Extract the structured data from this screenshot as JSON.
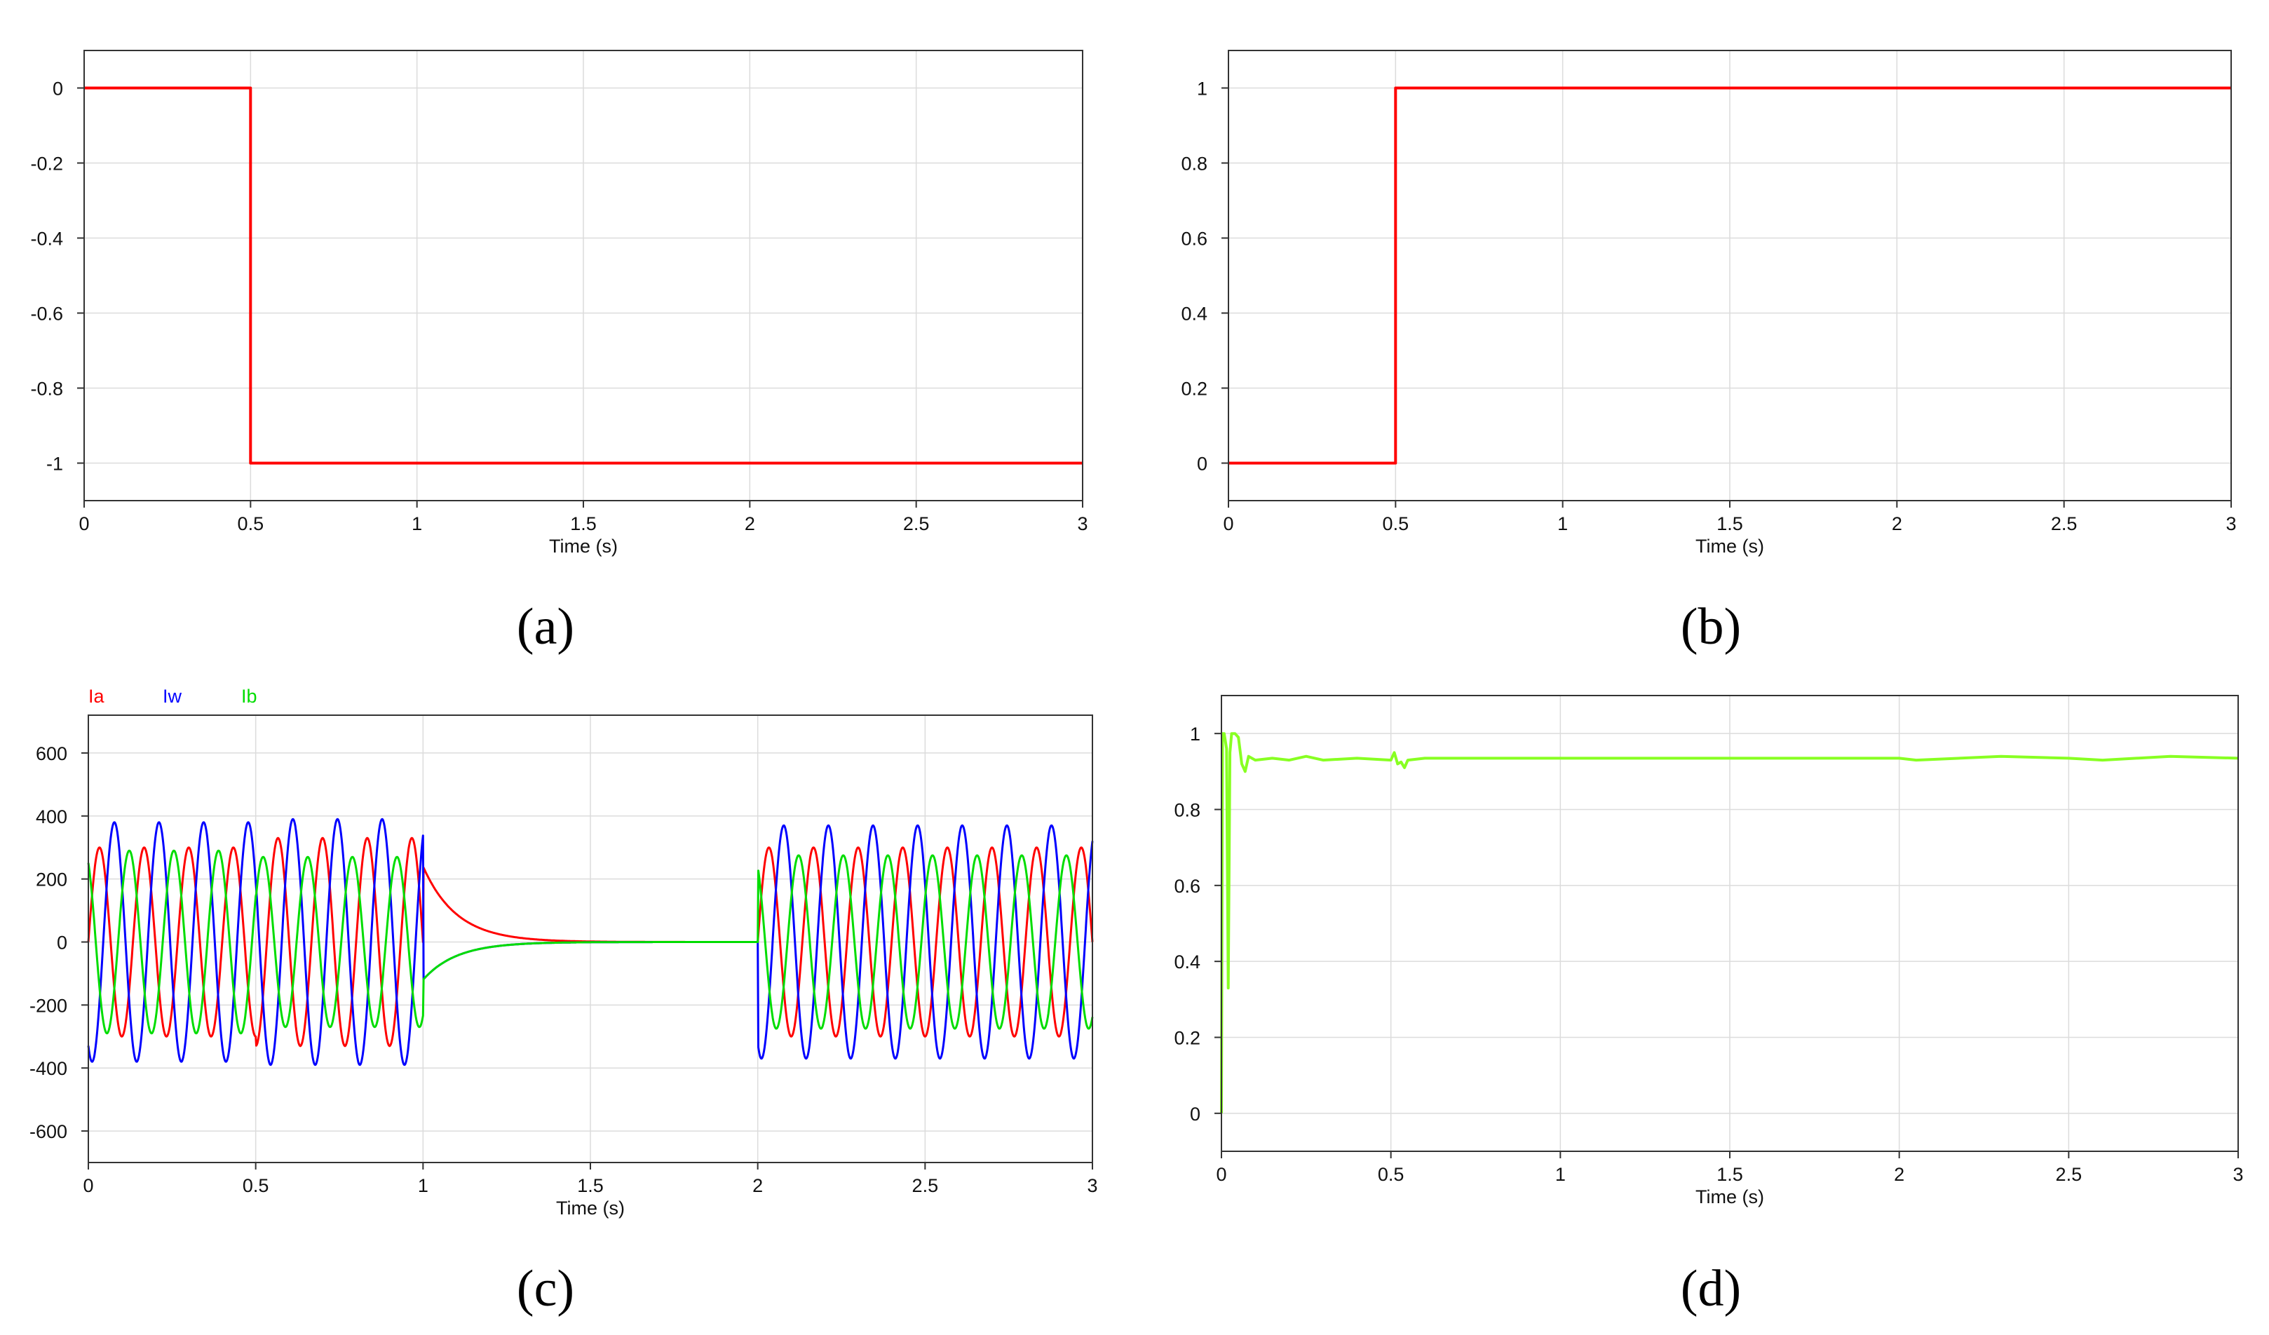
{
  "figure": {
    "panel_labels": [
      "(a)",
      "(b)",
      "(c)",
      "(d)"
    ]
  },
  "chart_data": [
    {
      "type": "line",
      "panel_label": "(a)",
      "title": "",
      "xlabel": "Time (s)",
      "ylabel": "",
      "xlim": [
        0,
        3
      ],
      "ylim": [
        -1.1,
        0.1
      ],
      "xticks": [
        0,
        0.5,
        1,
        1.5,
        2,
        2.5,
        3
      ],
      "xtick_labels": [
        "0",
        "0.5",
        "1",
        "1.5",
        "2",
        "2.5",
        "3"
      ],
      "yticks": [
        0,
        -0.2,
        -0.4,
        -0.6,
        -0.8,
        -1
      ],
      "ytick_labels": [
        "0",
        "-0.2",
        "-0.4",
        "-0.6",
        "-0.8",
        "-1"
      ],
      "grid": true,
      "series": [
        {
          "name": "",
          "color": "#ff0000",
          "x": [
            0,
            0.5,
            0.5,
            3
          ],
          "y": [
            0,
            0,
            -1,
            -1
          ]
        }
      ]
    },
    {
      "type": "line",
      "panel_label": "(b)",
      "title": "",
      "xlabel": "Time (s)",
      "ylabel": "",
      "xlim": [
        0,
        3
      ],
      "ylim": [
        -0.1,
        1.1
      ],
      "xticks": [
        0,
        0.5,
        1,
        1.5,
        2,
        2.5,
        3
      ],
      "xtick_labels": [
        "0",
        "0.5",
        "1",
        "1.5",
        "2",
        "2.5",
        "3"
      ],
      "yticks": [
        0,
        0.2,
        0.4,
        0.6,
        0.8,
        1
      ],
      "ytick_labels": [
        "0",
        "0.2",
        "0.4",
        "0.6",
        "0.8",
        "1"
      ],
      "grid": true,
      "series": [
        {
          "name": "",
          "color": "#ff0000",
          "x": [
            0,
            0.5,
            0.5,
            3
          ],
          "y": [
            0,
            0,
            1,
            1
          ]
        }
      ]
    },
    {
      "type": "line",
      "panel_label": "(c)",
      "title": "",
      "xlabel": "Time (s)",
      "ylabel": "",
      "xlim": [
        0,
        3
      ],
      "ylim": [
        -700,
        720
      ],
      "xticks": [
        0,
        0.5,
        1,
        1.5,
        2,
        2.5,
        3
      ],
      "xtick_labels": [
        "0",
        "0.5",
        "1",
        "1.5",
        "2",
        "2.5",
        "3"
      ],
      "yticks": [
        600,
        400,
        200,
        0,
        -200,
        -400,
        -600
      ],
      "ytick_labels": [
        "600",
        "400",
        "200",
        "0",
        "-200",
        "-400",
        "-600"
      ],
      "grid": true,
      "legend": [
        "Ia",
        "Iw",
        "Ib"
      ],
      "series": [
        {
          "name": "Ia",
          "color": "#ff0000",
          "phase_deg": 0,
          "segments": [
            {
              "t": [
                0,
                0.5
              ],
              "amplitude": 300
            },
            {
              "t": [
                0.5,
                1.0
              ],
              "amplitude": 330
            },
            {
              "t": [
                1.0,
                2.0
              ],
              "decay_from": 240,
              "tau": 0.1
            },
            {
              "t": [
                2.0,
                3.0
              ],
              "amplitude": 300
            }
          ]
        },
        {
          "name": "Iw",
          "color": "#0000ff",
          "phase_deg": -120,
          "segments": [
            {
              "t": [
                0,
                0.5
              ],
              "amplitude": 380
            },
            {
              "t": [
                0.5,
                1.0
              ],
              "amplitude": 390
            },
            {
              "t": [
                1.0,
                2.0
              ],
              "decay_from": -120,
              "tau": 0.1
            },
            {
              "t": [
                2.0,
                3.0
              ],
              "amplitude": 370
            }
          ]
        },
        {
          "name": "Ib",
          "color": "#00dd00",
          "phase_deg": 120,
          "segments": [
            {
              "t": [
                0,
                0.5
              ],
              "amplitude": 290
            },
            {
              "t": [
                0.5,
                1.0
              ],
              "amplitude": 270
            },
            {
              "t": [
                1.0,
                2.0
              ],
              "decay_from": -120,
              "tau": 0.1
            },
            {
              "t": [
                2.0,
                3.0
              ],
              "amplitude": 275
            }
          ]
        }
      ],
      "frequency_hz": 7.5
    },
    {
      "type": "line",
      "panel_label": "(d)",
      "title": "",
      "xlabel": "Time (s)",
      "ylabel": "",
      "xlim": [
        0,
        3
      ],
      "ylim": [
        -0.1,
        1.1
      ],
      "xticks": [
        0,
        0.5,
        1,
        1.5,
        2,
        2.5,
        3
      ],
      "xtick_labels": [
        "0",
        "0.5",
        "1",
        "1.5",
        "2",
        "2.5",
        "3"
      ],
      "yticks": [
        1,
        0.8,
        0.6,
        0.4,
        0.2,
        0
      ],
      "ytick_labels": [
        "1",
        "0.8",
        "0.6",
        "0.4",
        "0.2",
        "0"
      ],
      "grid": true,
      "series": [
        {
          "name": "",
          "color": "#88ff22",
          "x": [
            0,
            0.003,
            0.008,
            0.015,
            0.02,
            0.025,
            0.03,
            0.035,
            0.04,
            0.05,
            0.06,
            0.07,
            0.08,
            0.1,
            0.15,
            0.2,
            0.25,
            0.3,
            0.4,
            0.5,
            0.51,
            0.52,
            0.53,
            0.54,
            0.55,
            0.6,
            0.8,
            1.0,
            1.5,
            2.0,
            2.05,
            2.3,
            2.5,
            2.6,
            2.8,
            3.0
          ],
          "y": [
            0,
            1.0,
            1.0,
            0.96,
            0.33,
            0.95,
            1.0,
            1.0,
            1.0,
            0.99,
            0.92,
            0.9,
            0.94,
            0.93,
            0.935,
            0.93,
            0.94,
            0.93,
            0.935,
            0.93,
            0.95,
            0.92,
            0.925,
            0.91,
            0.93,
            0.935,
            0.935,
            0.935,
            0.935,
            0.935,
            0.93,
            0.94,
            0.935,
            0.93,
            0.94,
            0.935
          ]
        }
      ]
    }
  ]
}
